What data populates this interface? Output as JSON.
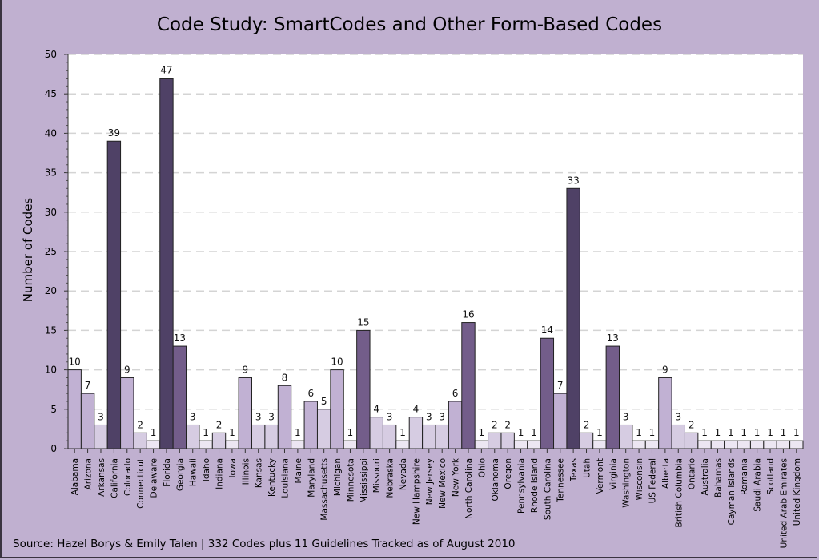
{
  "chart_data": {
    "type": "bar",
    "title": "Code Study: SmartCodes and Other Form-Based Codes",
    "xlabel": "",
    "ylabel": "Number of Codes",
    "ylim": [
      0,
      50
    ],
    "yticks": [
      0,
      5,
      10,
      15,
      20,
      25,
      30,
      35,
      40,
      45,
      50
    ],
    "grid": "horizontal dashed",
    "legend": "none",
    "categories": [
      "Alabama",
      "Arizona",
      "Arkansas",
      "California",
      "Colorado",
      "Connecticut",
      "Delaware",
      "Florida",
      "Georgia",
      "Hawaii",
      "Idaho",
      "Indiana",
      "Iowa",
      "Illinois",
      "Kansas",
      "Kentucky",
      "Louisiana",
      "Maine",
      "Maryland",
      "Massachusetts",
      "Michigan",
      "Minnesota",
      "Mississippi",
      "Missouri",
      "Nebraska",
      "Nevada",
      "New Hampshire",
      "New Jersey",
      "New Mexico",
      "New York",
      "North Carolina",
      "Ohio",
      "Oklahoma",
      "Oregon",
      "Pennsylvania",
      "Rhode Island",
      "South Carolina",
      "Tennessee",
      "Texas",
      "Utah",
      "Vermont",
      "Virginia",
      "Washington",
      "Wisconsin",
      "US Federal",
      "Alberta",
      "British Columbia",
      "Ontario",
      "Australia",
      "Bahamas",
      "Cayman Islands",
      "Romania",
      "Saudi Arabia",
      "Scotland",
      "United Arab Emirates",
      "United Kingdom"
    ],
    "values": [
      10,
      7,
      3,
      39,
      9,
      2,
      1,
      47,
      13,
      3,
      1,
      2,
      1,
      9,
      3,
      3,
      8,
      1,
      6,
      5,
      10,
      1,
      15,
      4,
      3,
      1,
      4,
      3,
      3,
      6,
      16,
      1,
      2,
      2,
      1,
      1,
      14,
      7,
      33,
      2,
      1,
      13,
      3,
      1,
      1,
      9,
      3,
      2,
      1,
      1,
      1,
      1,
      1,
      1,
      1,
      1
    ],
    "footer": "Source: Hazel Borys & Emily Talen | 332 Codes plus 11 Guidelines Tracked as of August 2010"
  },
  "colors": {
    "background": "#c0b0d0",
    "plot_area": "#ffffff",
    "tier_1": "#ece6f2",
    "tier_2_5": "#d6cce2",
    "tier_6_10": "#c1b1d3",
    "tier_11_20": "#735d8a",
    "tier_over_20": "#4f4166"
  }
}
